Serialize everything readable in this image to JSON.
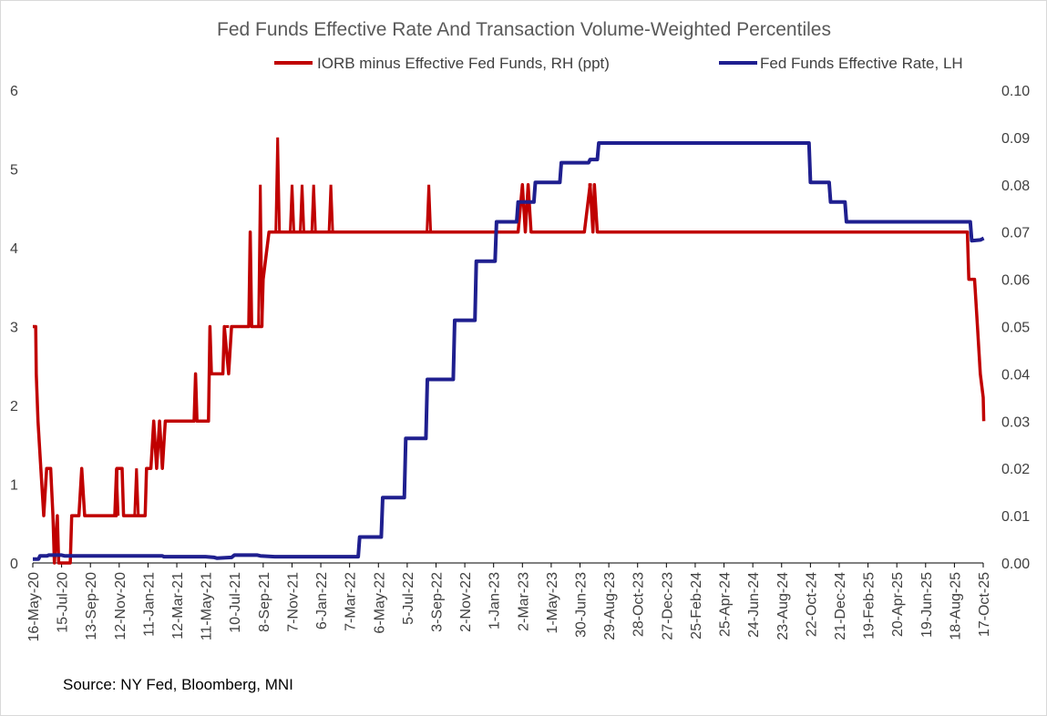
{
  "chart_data": {
    "type": "line",
    "title": "Fed Funds Effective Rate And Transaction Volume-Weighted Percentiles",
    "source": "Source: NY Fed, Bloomberg, MNI",
    "colors": {
      "red_series": "#c00000",
      "blue_series": "#1f1f8f",
      "axis": "#000000",
      "text": "#404040"
    },
    "left_axis": {
      "ylim": [
        0,
        6
      ],
      "ticks": [
        "0",
        "1",
        "2",
        "3",
        "4",
        "5",
        "6"
      ]
    },
    "right_axis": {
      "ylim": [
        0,
        0.1
      ],
      "ticks": [
        "0.00",
        "0.01",
        "0.02",
        "0.03",
        "0.04",
        "0.05",
        "0.06",
        "0.07",
        "0.08",
        "0.09",
        "0.10"
      ]
    },
    "x_categories": [
      "16-May-20",
      "15-Jul-20",
      "13-Sep-20",
      "12-Nov-20",
      "11-Jan-21",
      "12-Mar-21",
      "11-May-21",
      "10-Jul-21",
      "8-Sep-21",
      "7-Nov-21",
      "6-Jan-22",
      "7-Mar-22",
      "6-May-22",
      "5-Jul-22",
      "3-Sep-22",
      "2-Nov-22",
      "1-Jan-23",
      "2-Mar-23",
      "1-May-23",
      "30-Jun-23",
      "29-Aug-23",
      "28-Oct-23",
      "27-Dec-23",
      "25-Feb-24",
      "25-Apr-24",
      "24-Jun-24",
      "23-Aug-24",
      "22-Oct-24",
      "21-Dec-24",
      "19-Feb-25",
      "20-Apr-25",
      "19-Jun-25",
      "18-Aug-25",
      "17-Oct-25"
    ],
    "legend": {
      "position": "top-right",
      "entries": [
        "IORB minus Effective Fed Funds, RH (ppt)",
        "Fed Funds Effective Rate, LH"
      ]
    },
    "series": [
      {
        "name": "IORB minus Effective Fed Funds, RH (ppt)",
        "axis": "right",
        "color": "#c00000",
        "points": [
          [
            0.0,
            0.05
          ],
          [
            0.1,
            0.05
          ],
          [
            0.12,
            0.04
          ],
          [
            0.18,
            0.03
          ],
          [
            0.28,
            0.02
          ],
          [
            0.38,
            0.01
          ],
          [
            0.48,
            0.02
          ],
          [
            0.62,
            0.02
          ],
          [
            0.7,
            0.01
          ],
          [
            0.75,
            0.0
          ],
          [
            0.85,
            0.01
          ],
          [
            0.9,
            0.0
          ],
          [
            1.0,
            0.0
          ],
          [
            1.3,
            0.0
          ],
          [
            1.35,
            0.01
          ],
          [
            1.6,
            0.01
          ],
          [
            1.7,
            0.02
          ],
          [
            1.8,
            0.01
          ],
          [
            2.9,
            0.01
          ],
          [
            2.92,
            0.02
          ],
          [
            3.1,
            0.02
          ],
          [
            3.15,
            0.01
          ],
          [
            3.9,
            0.01
          ],
          [
            3.95,
            0.02
          ],
          [
            4.1,
            0.02
          ],
          [
            4.2,
            0.03
          ],
          [
            4.3,
            0.02
          ],
          [
            4.4,
            0.03
          ],
          [
            4.5,
            0.02
          ],
          [
            4.6,
            0.03
          ],
          [
            5.6,
            0.03
          ],
          [
            5.65,
            0.04
          ],
          [
            5.7,
            0.03
          ],
          [
            6.1,
            0.03
          ],
          [
            6.15,
            0.05
          ],
          [
            6.2,
            0.04
          ],
          [
            6.6,
            0.04
          ],
          [
            6.65,
            0.05
          ],
          [
            6.8,
            0.04
          ],
          [
            6.9,
            0.05
          ],
          [
            7.5,
            0.05
          ],
          [
            7.55,
            0.07
          ],
          [
            7.6,
            0.05
          ],
          [
            7.95,
            0.05
          ],
          [
            8.0,
            0.06
          ],
          [
            8.2,
            0.07
          ],
          [
            9.35,
            0.07
          ],
          [
            9.75,
            0.07
          ],
          [
            10.35,
            0.07
          ],
          [
            13.9,
            0.07
          ],
          [
            16.85,
            0.07
          ],
          [
            17.0,
            0.08
          ],
          [
            17.1,
            0.07
          ],
          [
            17.2,
            0.08
          ],
          [
            17.3,
            0.07
          ],
          [
            19.15,
            0.07
          ],
          [
            19.35,
            0.08
          ],
          [
            19.45,
            0.07
          ],
          [
            19.5,
            0.08
          ],
          [
            19.6,
            0.07
          ],
          [
            32.45,
            0.07
          ],
          [
            32.5,
            0.06
          ],
          [
            32.7,
            0.06
          ],
          [
            32.8,
            0.05
          ],
          [
            32.9,
            0.04
          ],
          [
            33.0,
            0.035
          ],
          [
            33.02,
            0.03
          ]
        ],
        "spikes": [
          [
            2.9,
            0.02
          ],
          [
            3.6,
            0.02
          ],
          [
            6.75,
            0.05
          ],
          [
            7.9,
            0.08
          ],
          [
            8.5,
            0.09
          ],
          [
            9.0,
            0.08
          ],
          [
            9.35,
            0.08
          ],
          [
            9.75,
            0.08
          ],
          [
            10.35,
            0.08
          ],
          [
            13.75,
            0.08
          ],
          [
            19.35,
            0.08
          ]
        ]
      },
      {
        "name": "Fed Funds Effective Rate, LH",
        "axis": "left",
        "color": "#1f1f8f",
        "points": [
          [
            0.0,
            0.05
          ],
          [
            0.2,
            0.05
          ],
          [
            0.25,
            0.09
          ],
          [
            0.5,
            0.09
          ],
          [
            0.55,
            0.1
          ],
          [
            1.0,
            0.1
          ],
          [
            1.1,
            0.09
          ],
          [
            4.5,
            0.09
          ],
          [
            4.55,
            0.08
          ],
          [
            6.0,
            0.08
          ],
          [
            6.3,
            0.07
          ],
          [
            6.4,
            0.06
          ],
          [
            6.9,
            0.07
          ],
          [
            7.0,
            0.1
          ],
          [
            7.8,
            0.1
          ],
          [
            7.9,
            0.09
          ],
          [
            8.4,
            0.08
          ],
          [
            11.3,
            0.08
          ],
          [
            11.35,
            0.33
          ],
          [
            12.1,
            0.33
          ],
          [
            12.15,
            0.83
          ],
          [
            12.9,
            0.83
          ],
          [
            12.95,
            1.58
          ],
          [
            13.65,
            1.58
          ],
          [
            13.7,
            2.33
          ],
          [
            14.6,
            2.33
          ],
          [
            14.65,
            3.08
          ],
          [
            15.35,
            3.08
          ],
          [
            15.4,
            3.83
          ],
          [
            16.05,
            3.83
          ],
          [
            16.1,
            4.33
          ],
          [
            16.8,
            4.33
          ],
          [
            16.85,
            4.58
          ],
          [
            17.4,
            4.58
          ],
          [
            17.45,
            4.83
          ],
          [
            18.3,
            4.83
          ],
          [
            18.35,
            5.08
          ],
          [
            19.3,
            5.08
          ],
          [
            19.35,
            5.12
          ],
          [
            19.6,
            5.12
          ],
          [
            19.65,
            5.33
          ],
          [
            26.95,
            5.33
          ],
          [
            27.0,
            4.83
          ],
          [
            27.65,
            4.83
          ],
          [
            27.7,
            4.58
          ],
          [
            28.2,
            4.58
          ],
          [
            28.25,
            4.33
          ],
          [
            32.55,
            4.33
          ],
          [
            32.6,
            4.09
          ],
          [
            32.9,
            4.1
          ],
          [
            33.02,
            4.12
          ]
        ]
      }
    ]
  }
}
